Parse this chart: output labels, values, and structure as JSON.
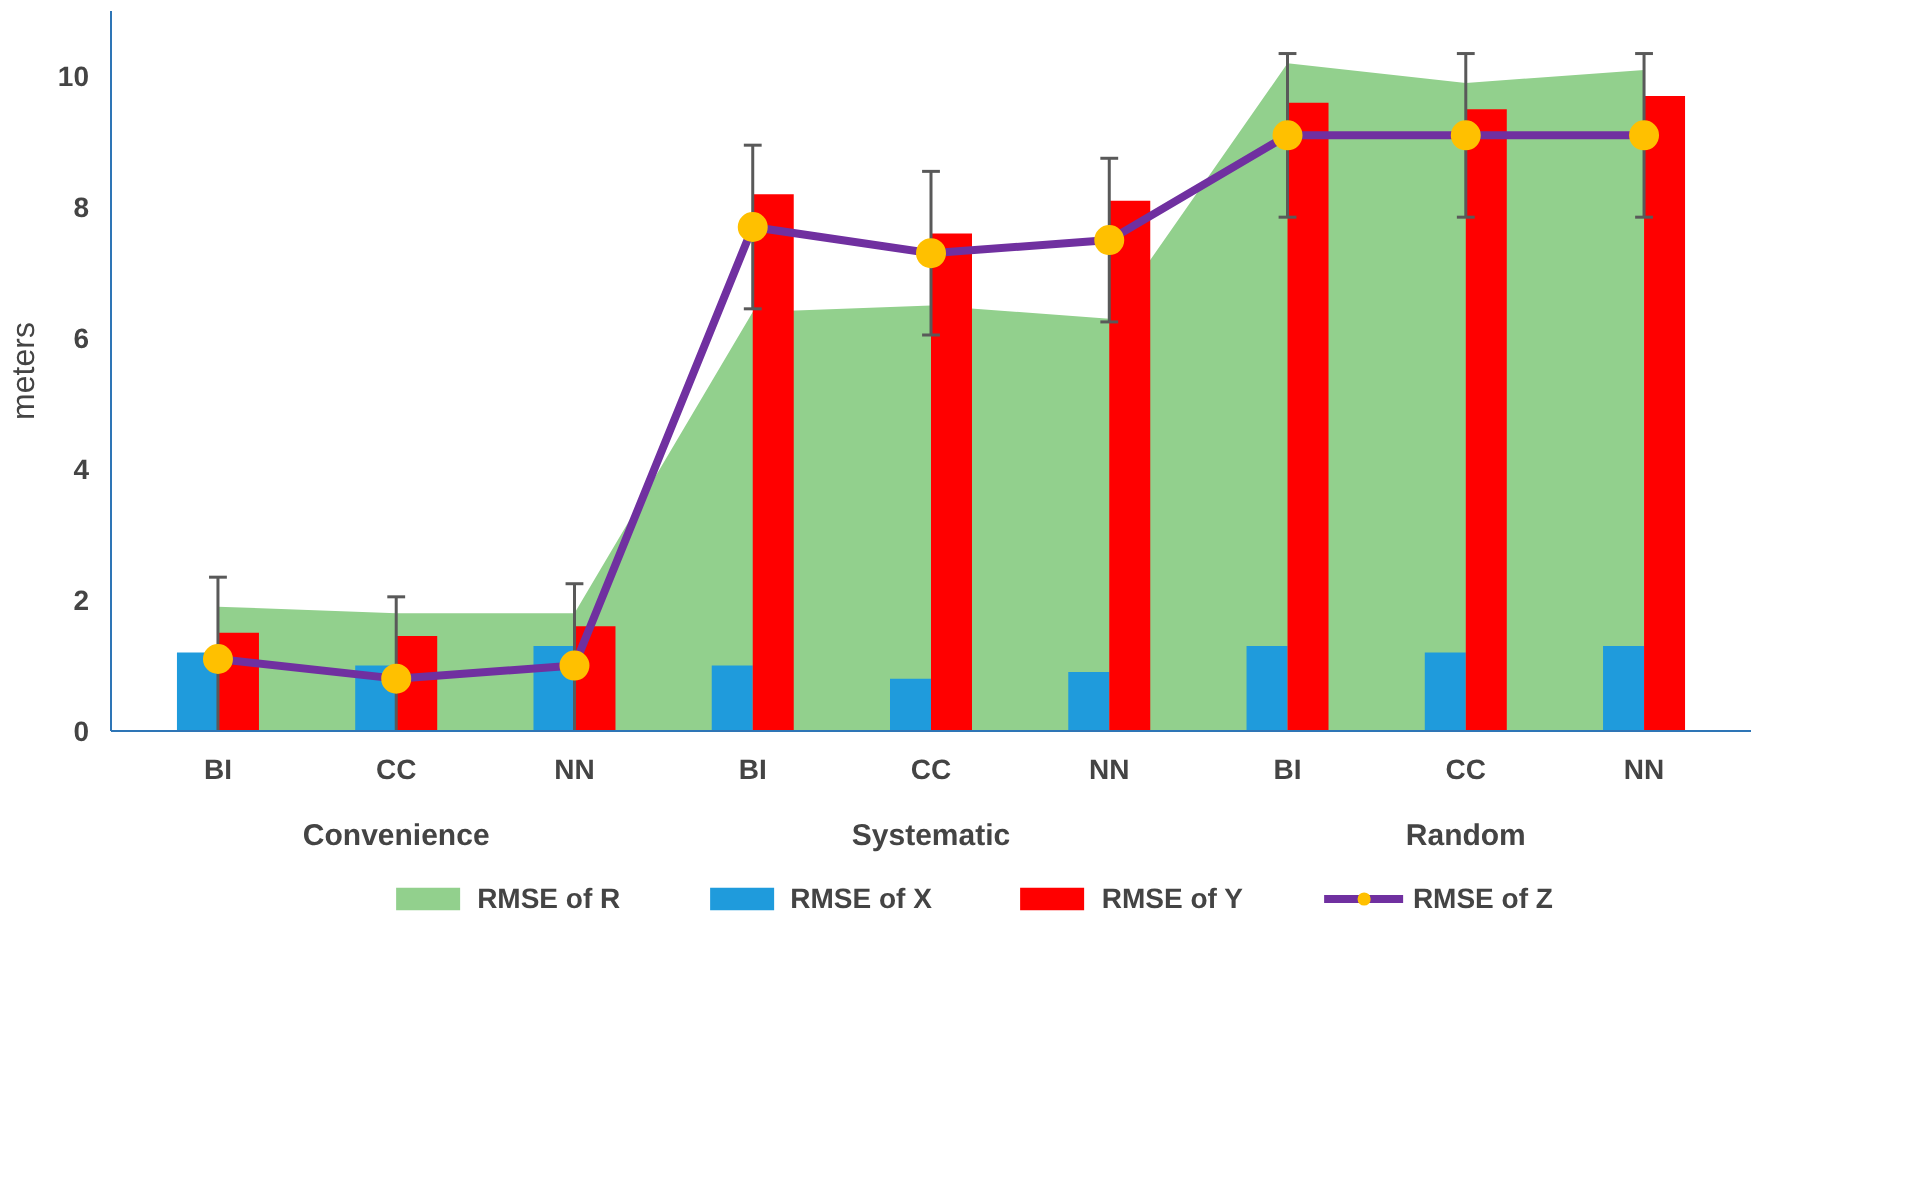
{
  "chart_data": {
    "type": "bar",
    "ylabel": "meters",
    "categories": [
      "BI",
      "CC",
      "NN",
      "BI",
      "CC",
      "NN",
      "BI",
      "CC",
      "NN"
    ],
    "annotations": [
      "Convenience",
      "Systematic",
      "Random"
    ],
    "series": [
      {
        "name": "RMSE of R",
        "type": "area",
        "color": "#92d08d",
        "values": [
          1.9,
          1.8,
          1.8,
          6.4,
          6.5,
          6.3,
          10.2,
          9.9,
          10.1
        ]
      },
      {
        "name": "RMSE of X",
        "type": "bar",
        "color": "#1f9bdc",
        "values": [
          1.2,
          1.0,
          1.3,
          1.0,
          0.8,
          0.9,
          1.3,
          1.2,
          1.3
        ]
      },
      {
        "name": "RMSE of Y",
        "type": "bar",
        "color": "#ff0000",
        "values": [
          1.5,
          1.45,
          1.6,
          8.2,
          7.6,
          8.1,
          9.6,
          9.5,
          9.7
        ]
      },
      {
        "name": "RMSE of Z",
        "type": "line",
        "color": "#7030a0",
        "marker": "circle",
        "values": [
          1.1,
          0.8,
          1.0,
          7.7,
          7.3,
          7.5,
          9.1,
          9.1,
          9.1
        ],
        "errors": [
          1.25,
          1.25,
          1.25,
          1.25,
          1.25,
          1.25,
          1.25,
          1.25,
          1.25
        ]
      }
    ],
    "ylim": [
      0,
      11
    ],
    "yticks": [
      0,
      2,
      4,
      6,
      8,
      10
    ],
    "grid": false,
    "legend": "bottom"
  }
}
